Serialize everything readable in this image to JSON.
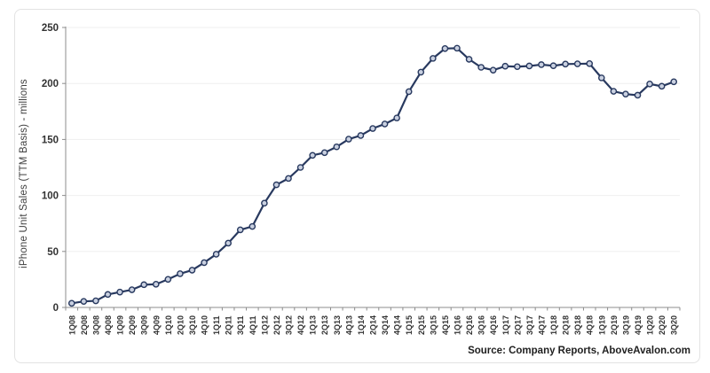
{
  "chart_data": {
    "type": "line",
    "ylabel": "iPhone Unit Sales (TTM Basis) - millions",
    "xlabel": "",
    "ylim": [
      0,
      250
    ],
    "yticks": [
      0,
      50,
      100,
      150,
      200,
      250
    ],
    "grid": "horizontal-light",
    "legend": "none",
    "marker": "circle",
    "categories": [
      "1Q08",
      "2Q08",
      "3Q08",
      "4Q08",
      "1Q09",
      "2Q09",
      "3Q09",
      "4Q09",
      "1Q10",
      "2Q10",
      "3Q10",
      "4Q10",
      "1Q11",
      "2Q11",
      "3Q11",
      "4Q11",
      "1Q12",
      "2Q12",
      "3Q12",
      "4Q12",
      "1Q13",
      "2Q13",
      "3Q13",
      "4Q13",
      "1Q14",
      "2Q14",
      "3Q14",
      "4Q14",
      "1Q15",
      "2Q15",
      "3Q15",
      "4Q15",
      "1Q16",
      "2Q16",
      "3Q16",
      "4Q16",
      "1Q17",
      "2Q17",
      "3Q17",
      "4Q17",
      "1Q18",
      "2Q18",
      "3Q18",
      "4Q18",
      "1Q19",
      "2Q19",
      "3Q19",
      "4Q19",
      "1Q20",
      "2Q20",
      "3Q20"
    ],
    "values": [
      3.7,
      5.4,
      5.9,
      11.6,
      13.7,
      15.8,
      20.3,
      20.7,
      25.1,
      30.1,
      33.3,
      40.0,
      47.5,
      57.4,
      69.3,
      72.3,
      93.1,
      109.5,
      115.2,
      125.0,
      135.8,
      138.2,
      143.4,
      150.3,
      153.5,
      159.8,
      163.8,
      169.2,
      192.7,
      210.1,
      222.4,
      231.2,
      231.5,
      221.6,
      214.4,
      211.9,
      215.4,
      215.0,
      215.6,
      216.8,
      215.8,
      217.3,
      217.5,
      217.7,
      205.0,
      193.0,
      190.5,
      189.5,
      199.5,
      197.5,
      201.5
    ]
  },
  "source": {
    "label": "Source: Company Reports, AboveAvalon.com"
  },
  "colors": {
    "line": "#28395f",
    "marker_fill": "#c9d0e0",
    "marker_stroke": "#28395f",
    "axis": "#8c8c8c",
    "gridline": "#efefef",
    "tick_label": "#333333",
    "card_border": "#e3e3e3",
    "background": "#ffffff"
  }
}
